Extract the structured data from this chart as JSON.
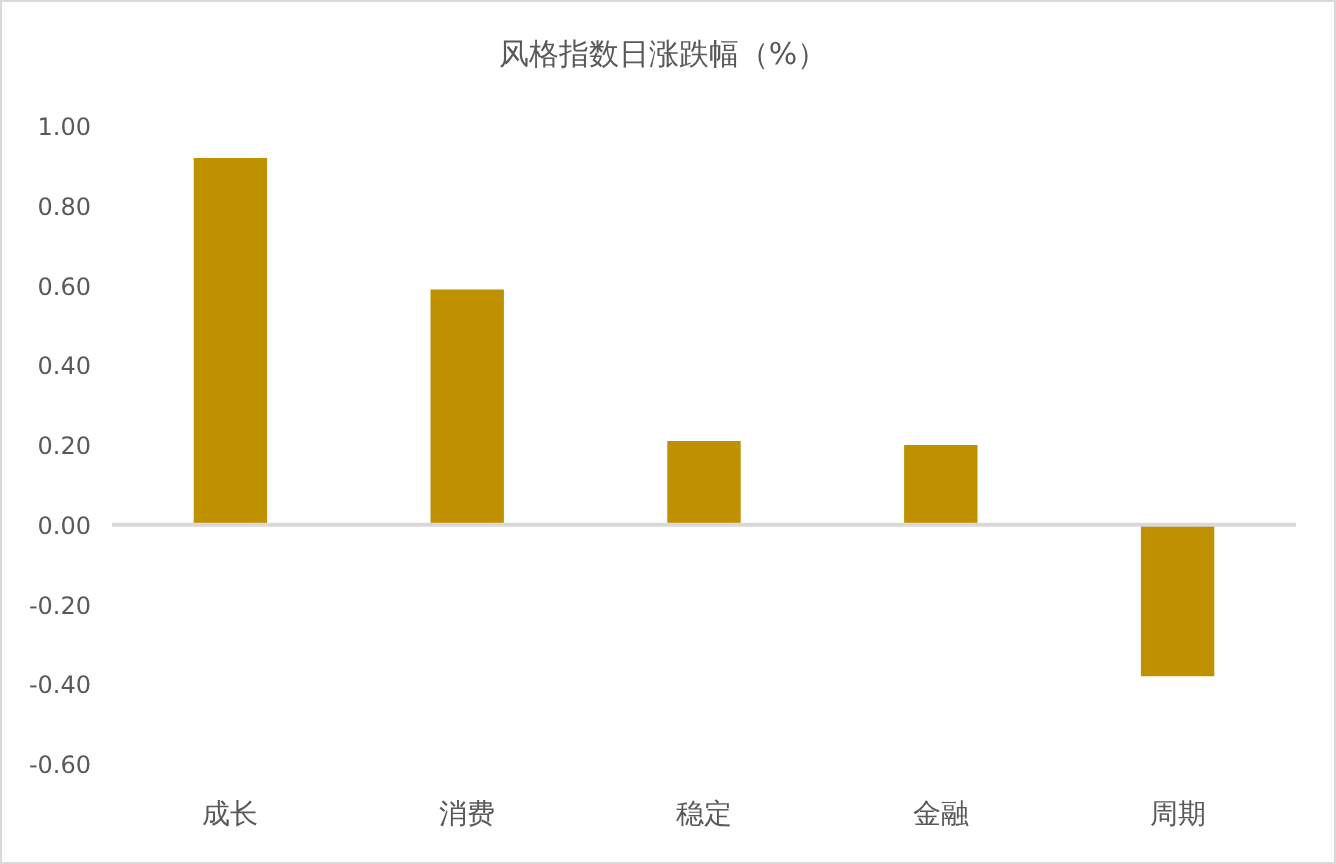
{
  "chart_data": {
    "type": "bar",
    "title": "风格指数日涨跌幅（%）",
    "categories": [
      "成长",
      "消费",
      "稳定",
      "金融",
      "周期"
    ],
    "values": [
      0.92,
      0.59,
      0.21,
      0.2,
      -0.38
    ],
    "color": "#bf9000",
    "ylim": [
      -0.6,
      1.0
    ],
    "yticks": [
      {
        "value": -0.6,
        "label": "-0.60"
      },
      {
        "value": -0.4,
        "label": "-0.40"
      },
      {
        "value": -0.2,
        "label": "-0.20"
      },
      {
        "value": 0,
        "label": "0.00"
      },
      {
        "value": 0.2,
        "label": "0.20"
      },
      {
        "value": 0.4,
        "label": "0.40"
      },
      {
        "value": 0.6,
        "label": "0.60"
      },
      {
        "value": 0.8,
        "label": "0.80"
      },
      {
        "value": 1.0,
        "label": "1.00"
      }
    ]
  }
}
